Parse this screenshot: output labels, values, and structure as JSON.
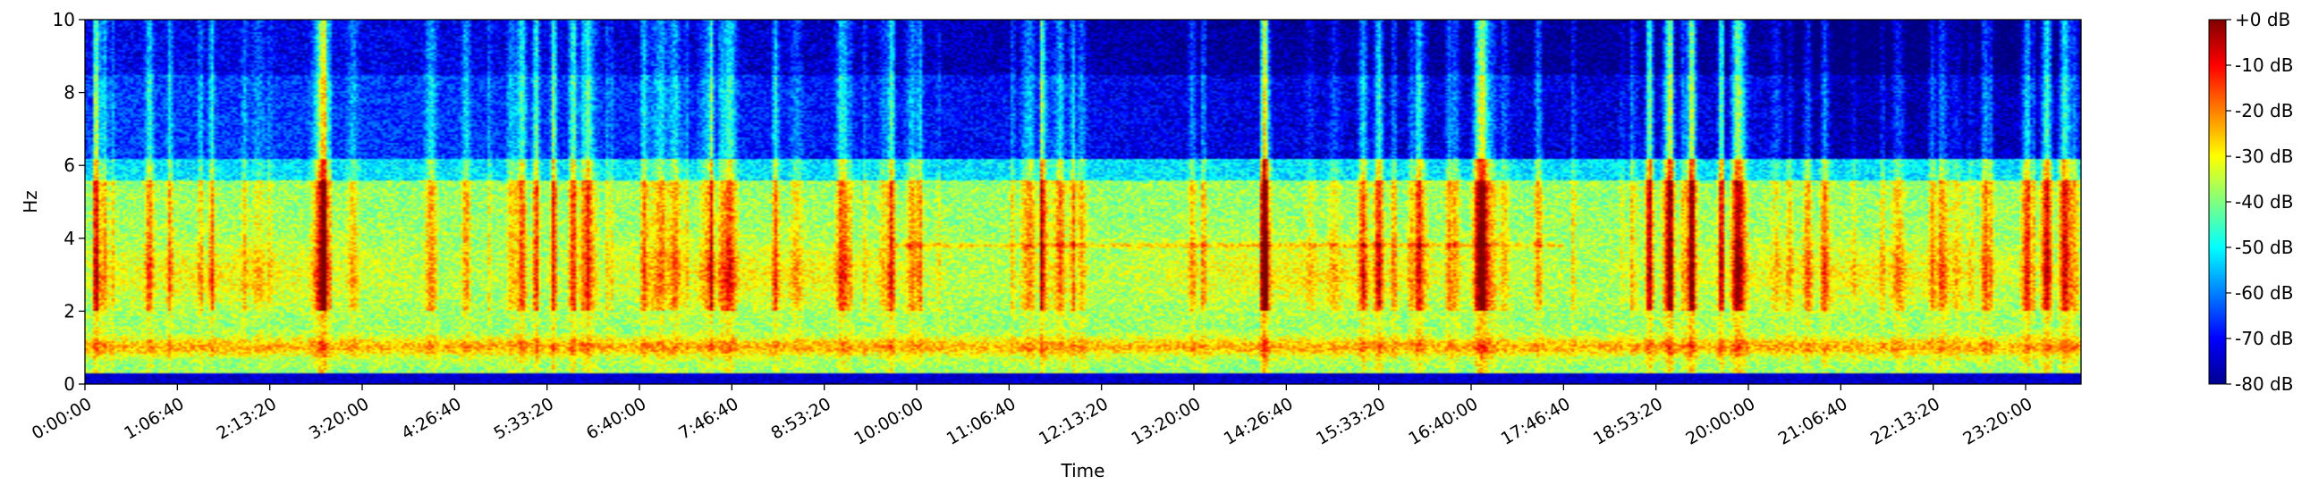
{
  "chart_data": {
    "type": "heatmap",
    "title": "",
    "xlabel": "Time",
    "ylabel": "Hz",
    "xlim_seconds": [
      0,
      86400
    ],
    "ylim": [
      0,
      10
    ],
    "x_tick_labels": [
      "0:00:00",
      "1:06:40",
      "2:13:20",
      "3:20:00",
      "4:26:40",
      "5:33:20",
      "6:40:00",
      "7:46:40",
      "8:53:20",
      "10:00:00",
      "11:06:40",
      "12:13:20",
      "13:20:00",
      "14:26:40",
      "15:33:20",
      "16:40:00",
      "17:46:40",
      "18:53:20",
      "20:00:00",
      "21:06:40",
      "22:13:20",
      "23:20:00"
    ],
    "y_ticks": [
      0,
      2,
      4,
      6,
      8,
      10
    ],
    "colorbar": {
      "colormap": "jet",
      "range_db": [
        -80,
        0
      ],
      "tick_labels": [
        "+0 dB",
        "-10 dB",
        "-20 dB",
        "-30 dB",
        "-40 dB",
        "-50 dB",
        "-60 dB",
        "-70 dB",
        "-80 dB"
      ]
    },
    "features": {
      "band_1hz_level_db": -25,
      "band_3hz_level_db": -30,
      "mid_band_2_to_6hz_level_db": -38,
      "upper_band_7_to_10hz_level_db": -65,
      "tone_3_8hz_level_db": -28,
      "tone_3_8hz_span_seconds": [
        35000,
        64000
      ]
    }
  }
}
